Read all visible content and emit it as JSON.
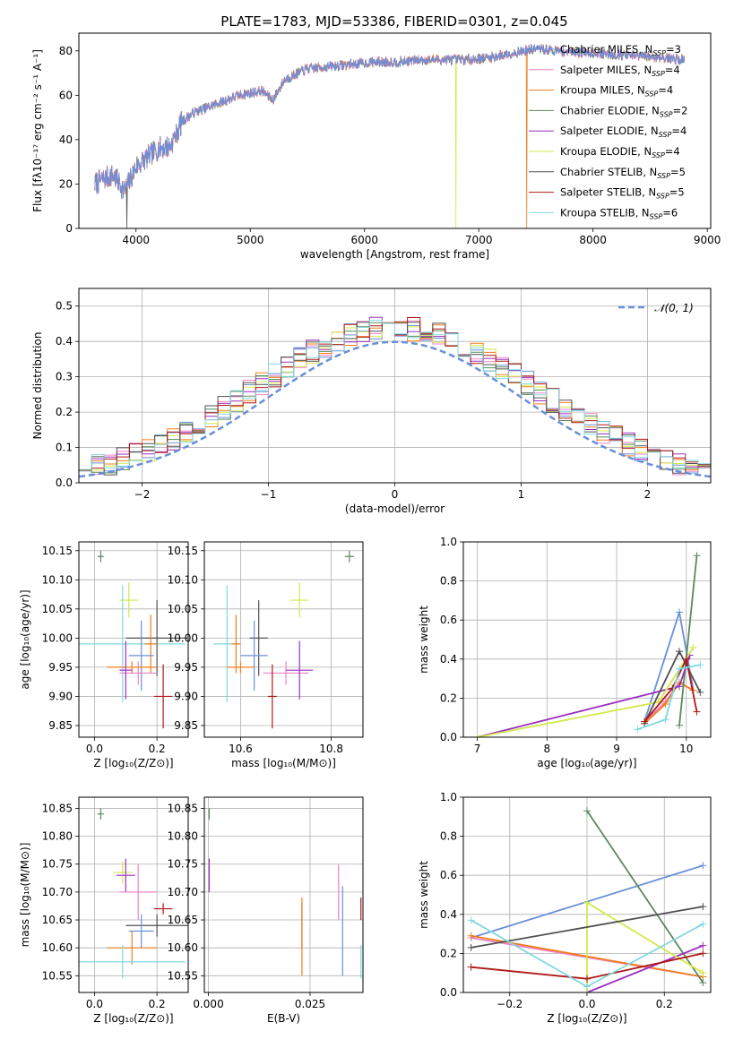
{
  "figure_title": "PLATE=1783, MJD=53386, FIBERID=0301, z=0.045",
  "series_colors": [
    "#6a8fd8",
    "#ee82c8",
    "#f07e1e",
    "#5a8a5a",
    "#9b2fc0",
    "#d4e84a",
    "#505050",
    "#b01818",
    "#80d8e0"
  ],
  "chart_data": [
    {
      "type": "line",
      "id": "spectrum",
      "title": "PLATE=1783, MJD=53386, FIBERID=0301, z=0.045",
      "xlabel": "wavelength [Angstrom, rest frame]",
      "ylabel": "Flux [fλ10⁻¹⁷ erg cm⁻² s⁻¹ A⁻¹]",
      "xlim": [
        3500,
        9030
      ],
      "ylim": [
        0,
        88
      ],
      "xticks": [
        4000,
        5000,
        6000,
        7000,
        8000,
        9000
      ],
      "yticks": [
        0,
        20,
        40,
        60,
        80
      ],
      "legend_position": "upper-right",
      "legend": [
        "Chabrier MILES, N_SSP=3",
        "Salpeter MILES, N_SSP=4",
        "Kroupa MILES, N_SSP=4",
        "Chabrier ELODIE, N_SSP=2",
        "Salpeter ELODIE, N_SSP=4",
        "Kroupa ELODIE, N_SSP=4",
        "Chabrier STELIB, N_SSP=5",
        "Salpeter STELIB, N_SSP=5",
        "Kroupa STELIB, N_SSP=6"
      ],
      "continuum": [
        [
          3640,
          20
        ],
        [
          3700,
          22
        ],
        [
          3800,
          24
        ],
        [
          3900,
          17
        ],
        [
          3950,
          22
        ],
        [
          4000,
          28
        ],
        [
          4100,
          32
        ],
        [
          4200,
          36
        ],
        [
          4300,
          37
        ],
        [
          4400,
          48
        ],
        [
          4500,
          52
        ],
        [
          4700,
          56
        ],
        [
          4900,
          60
        ],
        [
          5100,
          62
        ],
        [
          5200,
          58
        ],
        [
          5300,
          67
        ],
        [
          5500,
          72
        ],
        [
          5700,
          73
        ],
        [
          5900,
          74
        ],
        [
          6100,
          75
        ],
        [
          6300,
          75
        ],
        [
          6500,
          76
        ],
        [
          6700,
          76
        ],
        [
          6900,
          76
        ],
        [
          7100,
          77
        ],
        [
          7300,
          79
        ],
        [
          7500,
          81
        ],
        [
          7700,
          80
        ],
        [
          8000,
          79
        ],
        [
          8300,
          78
        ],
        [
          8600,
          77
        ],
        [
          8800,
          76
        ]
      ],
      "dropouts": [
        {
          "x": 3920,
          "series": 6
        },
        {
          "x": 6800,
          "series": 5
        },
        {
          "x": 7420,
          "series": 2
        }
      ]
    },
    {
      "type": "step",
      "id": "residuals",
      "xlabel": "(data-model)/error",
      "ylabel": "Normed distribution",
      "xlim": [
        -2.5,
        2.5
      ],
      "ylim": [
        0,
        0.55
      ],
      "xticks": [
        -2,
        -1,
        0,
        1,
        2
      ],
      "yticks": [
        0.0,
        0.1,
        0.2,
        0.3,
        0.4,
        0.5
      ],
      "reference_curve": {
        "label": "𝒩(0, 1)",
        "mean": 0,
        "sigma": 1,
        "color": "#6a8fd8",
        "style": "dashed"
      },
      "bin_width": 0.1
    },
    {
      "type": "scatter",
      "id": "z-age",
      "xlabel": "Z [log₁₀(Z/Z⊙)]",
      "ylabel": "age  [log₁₀(age/yr)]",
      "xlim": [
        -0.05,
        0.3
      ],
      "ylim": [
        9.83,
        10.165
      ],
      "xticks": [
        0.0,
        0.2
      ],
      "yticks": [
        9.85,
        9.9,
        9.95,
        10.0,
        10.05,
        10.1,
        10.15
      ],
      "points": [
        {
          "s": 3,
          "x": 0.02,
          "y": 10.14,
          "ex": 0.01,
          "ey": 0.01
        },
        {
          "s": 5,
          "x": 0.11,
          "y": 10.065,
          "ex": 0.03,
          "ey": 0.03
        },
        {
          "s": 8,
          "x": 0.09,
          "y": 9.99,
          "ex": 0.2,
          "ey": 0.1
        },
        {
          "s": 6,
          "x": 0.2,
          "y": 10.0,
          "ex": 0.1,
          "ey": 0.065
        },
        {
          "s": 2,
          "x": 0.18,
          "y": 9.99,
          "ex": 0.02,
          "ey": 0.05
        },
        {
          "s": 0,
          "x": 0.15,
          "y": 9.97,
          "ex": 0.04,
          "ey": 0.06
        },
        {
          "s": 1,
          "x": 0.14,
          "y": 9.94,
          "ex": 0.06,
          "ey": 0.02
        },
        {
          "s": 2,
          "x": 0.12,
          "y": 9.95,
          "ex": 0.08,
          "ey": 0.01
        },
        {
          "s": 4,
          "x": 0.1,
          "y": 9.945,
          "ex": 0.02,
          "ey": 0.05
        },
        {
          "s": 7,
          "x": 0.22,
          "y": 9.9,
          "ex": 0.03,
          "ey": 0.055
        }
      ]
    },
    {
      "type": "scatter",
      "id": "mass-age",
      "xlabel": "mass [log₁₀(M/M⊙)]",
      "ylabel": "",
      "xlim": [
        10.52,
        10.87
      ],
      "ylim": [
        9.83,
        10.165
      ],
      "xticks": [
        10.6,
        10.8
      ],
      "yticks": [
        9.85,
        9.9,
        9.95,
        10.0,
        10.05,
        10.1,
        10.15
      ],
      "points": [
        {
          "s": 3,
          "x": 10.84,
          "y": 10.14,
          "ex": 0.01,
          "ey": 0.01
        },
        {
          "s": 5,
          "x": 10.73,
          "y": 10.065,
          "ex": 0.02,
          "ey": 0.03
        },
        {
          "s": 8,
          "x": 10.57,
          "y": 9.99,
          "ex": 0.03,
          "ey": 0.1
        },
        {
          "s": 6,
          "x": 10.64,
          "y": 10.0,
          "ex": 0.02,
          "ey": 0.065
        },
        {
          "s": 2,
          "x": 10.59,
          "y": 9.99,
          "ex": 0.01,
          "ey": 0.05
        },
        {
          "s": 0,
          "x": 10.63,
          "y": 9.97,
          "ex": 0.03,
          "ey": 0.06
        },
        {
          "s": 1,
          "x": 10.7,
          "y": 9.94,
          "ex": 0.05,
          "ey": 0.02
        },
        {
          "s": 2,
          "x": 10.6,
          "y": 9.95,
          "ex": 0.03,
          "ey": 0.01
        },
        {
          "s": 4,
          "x": 10.73,
          "y": 9.945,
          "ex": 0.03,
          "ey": 0.05
        },
        {
          "s": 7,
          "x": 10.67,
          "y": 9.9,
          "ex": 0.01,
          "ey": 0.055
        }
      ]
    },
    {
      "type": "line",
      "id": "age-weight",
      "xlabel": "age  [log₁₀(age/yr)]",
      "ylabel": "mass weight",
      "xlim": [
        6.8,
        10.35
      ],
      "ylim": [
        0,
        1.0
      ],
      "xticks": [
        7,
        8,
        9,
        10
      ],
      "yticks": [
        0.0,
        0.2,
        0.4,
        0.6,
        0.8,
        1.0
      ],
      "series": [
        {
          "s": 0,
          "points": [
            [
              9.4,
              0.08
            ],
            [
              9.9,
              0.64
            ],
            [
              10.1,
              0.24
            ]
          ]
        },
        {
          "s": 1,
          "points": [
            [
              9.4,
              0.08
            ],
            [
              9.7,
              0.18
            ],
            [
              9.9,
              0.28
            ],
            [
              10.1,
              0.24
            ]
          ]
        },
        {
          "s": 2,
          "points": [
            [
              9.4,
              0.07
            ],
            [
              9.7,
              0.17
            ],
            [
              9.9,
              0.28
            ],
            [
              10.1,
              0.24
            ]
          ]
        },
        {
          "s": 3,
          "points": [
            [
              9.9,
              0.06
            ],
            [
              10.15,
              0.93
            ]
          ]
        },
        {
          "s": 4,
          "points": [
            [
              7.0,
              0.0
            ],
            [
              9.9,
              0.26
            ],
            [
              10.05,
              0.42
            ]
          ]
        },
        {
          "s": 5,
          "points": [
            [
              7.0,
              0.0
            ],
            [
              9.6,
              0.18
            ],
            [
              10.1,
              0.46
            ]
          ]
        },
        {
          "s": 6,
          "points": [
            [
              9.4,
              0.07
            ],
            [
              9.9,
              0.44
            ],
            [
              10.2,
              0.23
            ]
          ]
        },
        {
          "s": 7,
          "points": [
            [
              9.4,
              0.08
            ],
            [
              9.8,
              0.25
            ],
            [
              10.0,
              0.4
            ],
            [
              10.15,
              0.13
            ]
          ]
        },
        {
          "s": 8,
          "points": [
            [
              9.3,
              0.04
            ],
            [
              9.7,
              0.09
            ],
            [
              9.9,
              0.35
            ],
            [
              10.2,
              0.37
            ]
          ]
        }
      ]
    },
    {
      "type": "scatter",
      "id": "z-mass",
      "xlabel": "Z [log₁₀(Z/Z⊙)]",
      "ylabel": "mass [log₁₀(M/M⊙)]",
      "xlim": [
        -0.05,
        0.3
      ],
      "ylim": [
        10.52,
        10.87
      ],
      "xticks": [
        0.0,
        0.2
      ],
      "yticks": [
        10.55,
        10.6,
        10.65,
        10.7,
        10.75,
        10.8,
        10.85
      ],
      "points": [
        {
          "s": 3,
          "x": 0.02,
          "y": 10.84,
          "ex": 0.01,
          "ey": 0.01
        },
        {
          "s": 5,
          "x": 0.09,
          "y": 10.735,
          "ex": 0.03,
          "ey": 0.02
        },
        {
          "s": 4,
          "x": 0.1,
          "y": 10.73,
          "ex": 0.03,
          "ey": 0.03
        },
        {
          "s": 1,
          "x": 0.14,
          "y": 10.7,
          "ex": 0.06,
          "ey": 0.05
        },
        {
          "s": 7,
          "x": 0.22,
          "y": 10.67,
          "ex": 0.03,
          "ey": 0.01
        },
        {
          "s": 6,
          "x": 0.2,
          "y": 10.64,
          "ex": 0.1,
          "ey": 0.02
        },
        {
          "s": 0,
          "x": 0.15,
          "y": 10.63,
          "ex": 0.04,
          "ey": 0.03
        },
        {
          "s": 2,
          "x": 0.12,
          "y": 10.6,
          "ex": 0.08,
          "ey": 0.03
        },
        {
          "s": 8,
          "x": 0.09,
          "y": 10.575,
          "ex": 0.2,
          "ey": 0.03
        }
      ]
    },
    {
      "type": "scatter",
      "id": "ebv-mass",
      "xlabel": "E(B-V)",
      "ylabel": "",
      "xlim": [
        -0.001,
        0.038
      ],
      "ylim": [
        10.52,
        10.87
      ],
      "xticks": [
        0.0,
        0.025
      ],
      "xtick_labels": [
        "0.000",
        "0.025"
      ],
      "yticks": [
        10.55,
        10.6,
        10.65,
        10.7,
        10.75,
        10.8,
        10.85
      ],
      "points": [
        {
          "s": 3,
          "x": 0.0002,
          "y": 10.84,
          "ex": 0,
          "ey": 0.01
        },
        {
          "s": 5,
          "x": 0.0002,
          "y": 10.735,
          "ex": 0,
          "ey": 0.02
        },
        {
          "s": 4,
          "x": 0.0002,
          "y": 10.73,
          "ex": 0,
          "ey": 0.03
        },
        {
          "s": 1,
          "x": 0.032,
          "y": 10.7,
          "ex": 0,
          "ey": 0.05
        },
        {
          "s": 7,
          "x": 0.0375,
          "y": 10.67,
          "ex": 0,
          "ey": 0.02
        },
        {
          "s": 6,
          "x": 0.023,
          "y": 10.64,
          "ex": 0,
          "ey": 0.04
        },
        {
          "s": 0,
          "x": 0.033,
          "y": 10.63,
          "ex": 0,
          "ey": 0.08
        },
        {
          "s": 2,
          "x": 0.023,
          "y": 10.62,
          "ex": 0,
          "ey": 0.07
        },
        {
          "s": 8,
          "x": 0.0375,
          "y": 10.575,
          "ex": 0,
          "ey": 0.03
        }
      ]
    },
    {
      "type": "line",
      "id": "z-weight",
      "xlabel": "Z [log₁₀(Z/Z⊙)]",
      "ylabel": "mass weight",
      "xlim": [
        -0.32,
        0.32
      ],
      "ylim": [
        0,
        1.0
      ],
      "xticks": [
        -0.2,
        0.0,
        0.2
      ],
      "yticks": [
        0.0,
        0.2,
        0.4,
        0.6,
        0.8,
        1.0
      ],
      "series": [
        {
          "s": 0,
          "points": [
            [
              -0.3,
              0.28
            ],
            [
              0.3,
              0.65
            ]
          ]
        },
        {
          "s": 1,
          "points": [
            [
              -0.3,
              0.28
            ],
            [
              0.3,
              0.08
            ]
          ]
        },
        {
          "s": 2,
          "points": [
            [
              -0.3,
              0.29
            ],
            [
              0.3,
              0.08
            ]
          ]
        },
        {
          "s": 3,
          "points": [
            [
              0.0,
              0.93
            ],
            [
              0.3,
              0.05
            ]
          ]
        },
        {
          "s": 4,
          "points": [
            [
              0.0,
              0.0
            ],
            [
              0.3,
              0.24
            ]
          ]
        },
        {
          "s": 5,
          "points": [
            [
              0.0,
              0.0
            ],
            [
              0.0,
              0.46
            ],
            [
              0.3,
              0.1
            ]
          ]
        },
        {
          "s": 6,
          "points": [
            [
              -0.3,
              0.23
            ],
            [
              0.3,
              0.44
            ]
          ]
        },
        {
          "s": 7,
          "points": [
            [
              -0.3,
              0.13
            ],
            [
              0.0,
              0.07
            ],
            [
              0.3,
              0.2
            ]
          ]
        },
        {
          "s": 8,
          "points": [
            [
              -0.3,
              0.37
            ],
            [
              0.0,
              0.03
            ],
            [
              0.3,
              0.35
            ]
          ]
        }
      ]
    }
  ]
}
